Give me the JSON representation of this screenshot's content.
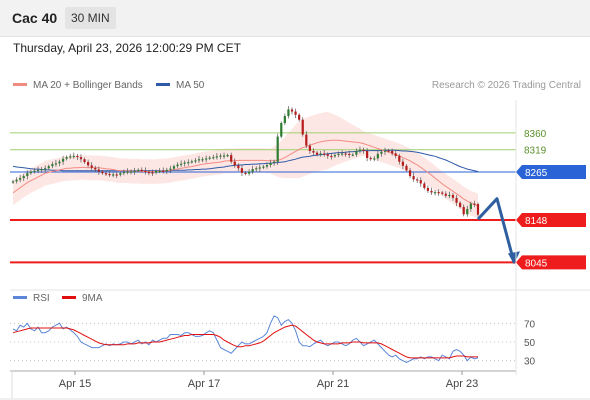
{
  "header": {
    "symbol": "Cac 40",
    "timeframe": "30 MIN"
  },
  "timestamp": "Thursday, April 23, 2026 12:00:29 PM CET",
  "legend": {
    "ma20_label": "MA 20 + Bollinger Bands",
    "ma50_label": "MA 50",
    "rsi_label": "RSI",
    "ma9_label": "9MA"
  },
  "credit": "Research © 2026 Trading Central",
  "colors": {
    "ma20": "#f28b82",
    "ma50": "#2f5aa8",
    "rsi": "#5b86d9",
    "ma9": "#e01010",
    "support": "#ee1c1c",
    "resistance": "#9fcf6f",
    "pivot": "#2a63d6",
    "arrow": "#2f5fa0",
    "candle_up": "#2e7d32",
    "candle_down": "#b71c1c"
  },
  "chart_data": [
    {
      "type": "line",
      "title": "",
      "x_ticks": [
        "Apr 15",
        "Apr 17",
        "Apr 21",
        "Apr 23"
      ],
      "price_levels": [
        {
          "label": "8360",
          "value": 8360,
          "kind": "resistance"
        },
        {
          "label": "8319",
          "value": 8319,
          "kind": "resistance"
        },
        {
          "label": "8265",
          "value": 8265,
          "kind": "pivot"
        },
        {
          "label": "8148",
          "value": 8148,
          "kind": "support"
        },
        {
          "label": "8045",
          "value": 8045,
          "kind": "support"
        }
      ],
      "ylim": [
        7990,
        8440
      ],
      "close_series": [
        8242,
        8246,
        8250,
        8255,
        8262,
        8266,
        8268,
        8270,
        8272,
        8274,
        8279,
        8284,
        8286,
        8290,
        8297,
        8301,
        8303,
        8304,
        8301,
        8296,
        8289,
        8281,
        8275,
        8271,
        8266,
        8262,
        8260,
        8259,
        8259,
        8258,
        8262,
        8265,
        8266,
        8266,
        8268,
        8270,
        8268,
        8265,
        8264,
        8263,
        8267,
        8268,
        8267,
        8270,
        8273,
        8279,
        8283,
        8285,
        8288,
        8289,
        8291,
        8293,
        8296,
        8296,
        8298,
        8300,
        8301,
        8303,
        8305,
        8305,
        8306,
        8290,
        8281,
        8274,
        8263,
        8261,
        8266,
        8272,
        8274,
        8276,
        8278,
        8282,
        8287,
        8290,
        8351,
        8384,
        8401,
        8417,
        8412,
        8404,
        8392,
        8356,
        8329,
        8316,
        8312,
        8307,
        8310,
        8308,
        8304,
        8303,
        8306,
        8309,
        8310,
        8309,
        8307,
        8307,
        8316,
        8319,
        8316,
        8299,
        8296,
        8298,
        8309,
        8314,
        8317,
        8316,
        8310,
        8304,
        8290,
        8280,
        8269,
        8255,
        8247,
        8245,
        8237,
        8226,
        8219,
        8215,
        8216,
        8215,
        8212,
        8207,
        8209,
        8202,
        8190,
        8180,
        8162,
        8175,
        8188,
        8187,
        8161
      ],
      "series": [
        {
          "name": "MA 20 + Bollinger Bands",
          "values": [
            8214,
            8220,
            8227,
            8233,
            8239,
            8244,
            8248,
            8253,
            8257,
            8262,
            8264,
            8266,
            8268,
            8270,
            8272,
            8274,
            8274,
            8275,
            8275,
            8276,
            8276,
            8275,
            8275,
            8275,
            8275,
            8274,
            8273,
            8272,
            8271,
            8269,
            8268,
            8268,
            8268,
            8267,
            8267,
            8267,
            8266,
            8266,
            8266,
            8266,
            8266,
            8267,
            8267,
            8268,
            8269,
            8271,
            8272,
            8274,
            8275,
            8277,
            8278,
            8280,
            8282,
            8284,
            8285,
            8286,
            8287,
            8288,
            8289,
            8291,
            8292,
            8292,
            8292,
            8293,
            8293,
            8293,
            8293,
            8293,
            8293,
            8293,
            8293,
            8292,
            8292,
            8292,
            8293,
            8296,
            8300,
            8305,
            8310,
            8315,
            8320,
            8324,
            8327,
            8330,
            8333,
            8336,
            8338,
            8340,
            8341,
            8342,
            8342,
            8342,
            8341,
            8340,
            8339,
            8338,
            8337,
            8336,
            8334,
            8331,
            8328,
            8325,
            8322,
            8319,
            8316,
            8313,
            8310,
            8307,
            8304,
            8300,
            8296,
            8292,
            8287,
            8282,
            8276,
            8270,
            8264,
            8257,
            8250,
            8243,
            8236,
            8230,
            8224,
            8218,
            8212,
            8206,
            8199,
            8194,
            8189,
            8186,
            8182
          ]
        },
        {
          "name": "MA 50",
          "values": [
            8279,
            8277,
            8276,
            8275,
            8274,
            8273,
            8272,
            8272,
            8271,
            8270,
            8270,
            8269,
            8269,
            8269,
            8268,
            8268,
            8268,
            8268,
            8268,
            8268,
            8268,
            8268,
            8268,
            8268,
            8268,
            8268,
            8268,
            8268,
            8268,
            8268,
            8268,
            8268,
            8268,
            8268,
            8268,
            8268,
            8268,
            8268,
            8268,
            8268,
            8268,
            8268,
            8268,
            8268,
            8268,
            8269,
            8269,
            8269,
            8269,
            8270,
            8270,
            8271,
            8271,
            8272,
            8272,
            8273,
            8274,
            8275,
            8276,
            8277,
            8279,
            8280,
            8281,
            8282,
            8282,
            8283,
            8283,
            8284,
            8284,
            8285,
            8285,
            8286,
            8286,
            8287,
            8288,
            8289,
            8290,
            8292,
            8294,
            8296,
            8299,
            8301,
            8302,
            8303,
            8305,
            8306,
            8307,
            8308,
            8309,
            8310,
            8311,
            8312,
            8312,
            8313,
            8314,
            8314,
            8315,
            8316,
            8317,
            8317,
            8317,
            8317,
            8317,
            8317,
            8318,
            8318,
            8318,
            8318,
            8317,
            8316,
            8316,
            8315,
            8314,
            8313,
            8311,
            8309,
            8307,
            8305,
            8303,
            8300,
            8297,
            8294,
            8290,
            8286,
            8282,
            8278,
            8275,
            8272,
            8270,
            8268,
            8266
          ]
        }
      ],
      "forecast_path": [
        {
          "label": "Apr 23",
          "value": 8150
        },
        {
          "label": "",
          "value": 8200
        },
        {
          "label": "",
          "value": 8045
        }
      ]
    },
    {
      "type": "line",
      "title": "",
      "ylim": [
        20,
        80
      ],
      "y_ticks": [
        70,
        50,
        30
      ],
      "series": [
        {
          "name": "RSI",
          "values": [
            64,
            62,
            68,
            66,
            70,
            64,
            62,
            66,
            60,
            60,
            62,
            66,
            68,
            70,
            64,
            66,
            63,
            60,
            56,
            50,
            48,
            46,
            44,
            44,
            44,
            46,
            48,
            46,
            48,
            47,
            48,
            50,
            50,
            48,
            50,
            52,
            48,
            50,
            47,
            52,
            50,
            52,
            54,
            54,
            58,
            58,
            58,
            57,
            60,
            60,
            58,
            56,
            56,
            57,
            60,
            62,
            60,
            52,
            44,
            42,
            40,
            38,
            42,
            46,
            50,
            48,
            48,
            50,
            52,
            54,
            56,
            60,
            70,
            78,
            76,
            68,
            72,
            74,
            70,
            62,
            50,
            46,
            46,
            45,
            48,
            50,
            52,
            48,
            46,
            48,
            50,
            50,
            48,
            46,
            48,
            52,
            54,
            50,
            46,
            48,
            50,
            52,
            48,
            44,
            40,
            36,
            34,
            36,
            32,
            30,
            28,
            30,
            32,
            32,
            34,
            32,
            34,
            34,
            32,
            30,
            36,
            34,
            32,
            40,
            42,
            40,
            36,
            30,
            34,
            32,
            33
          ]
        },
        {
          "name": "9MA",
          "values": [
            60,
            61,
            62,
            63,
            64,
            65,
            65,
            65,
            65,
            65,
            65,
            65,
            65,
            65,
            65,
            65,
            64,
            63,
            61,
            59,
            57,
            55,
            53,
            51,
            49,
            48,
            47,
            47,
            47,
            47,
            47,
            47,
            48,
            48,
            48,
            49,
            49,
            49,
            49,
            50,
            50,
            50,
            51,
            52,
            53,
            54,
            55,
            56,
            57,
            57,
            58,
            58,
            58,
            58,
            58,
            58,
            58,
            57,
            55,
            52,
            50,
            48,
            46,
            45,
            45,
            46,
            46,
            47,
            48,
            49,
            51,
            54,
            57,
            60,
            62,
            64,
            66,
            67,
            68,
            67,
            64,
            61,
            58,
            55,
            52,
            50,
            49,
            48,
            48,
            48,
            48,
            48,
            49,
            49,
            49,
            50,
            50,
            50,
            49,
            49,
            49,
            49,
            49,
            48,
            46,
            44,
            42,
            40,
            38,
            36,
            34,
            33,
            33,
            33,
            33,
            33,
            33,
            33,
            33,
            33,
            33,
            33,
            33,
            34,
            35,
            35,
            35,
            34,
            34,
            34,
            34
          ]
        }
      ]
    }
  ]
}
